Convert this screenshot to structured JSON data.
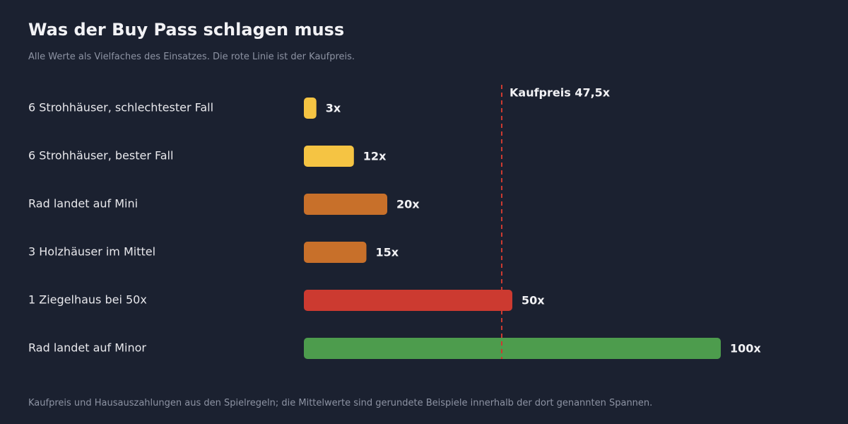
{
  "header": {
    "title": "Was der Buy Pass schlagen muss",
    "subtitle": "Alle Werte als Vielfaches des Einsatzes. Die rote Linie ist der Kaufpreis."
  },
  "footer": {
    "note": "Kaufpreis und Hausauszahlungen aus den Spielregeln; die Mittelwerte sind gerundete Beispiele innerhalb der dort genannten Spannen."
  },
  "chart_data": {
    "type": "bar",
    "orientation": "horizontal",
    "title": "Was der Buy Pass schlagen muss",
    "subtitle": "Alle Werte als Vielfaches des Einsatzes. Die rote Linie ist der Kaufpreis.",
    "xlim": [
      0,
      100
    ],
    "grid": false,
    "categories": [
      "6 Strohhäuser, schlechtester Fall",
      "6 Strohhäuser, bester Fall",
      "Rad landet auf Mini",
      "3 Holzhäuser im Mittel",
      "1 Ziegelhaus bei 50x",
      "Rad landet auf Minor"
    ],
    "values": [
      3,
      12,
      20,
      15,
      50,
      100
    ],
    "value_labels": [
      "3x",
      "12x",
      "20x",
      "15x",
      "50x",
      "100x"
    ],
    "colors": [
      "#f5c443",
      "#f5c443",
      "#c8702a",
      "#c8702a",
      "#cc3a30",
      "#4d9c4d"
    ],
    "reference_line": {
      "value": 47.5,
      "label": "Kaufpreis 47,5x",
      "color": "#cc3a30",
      "style": "dashed"
    }
  }
}
